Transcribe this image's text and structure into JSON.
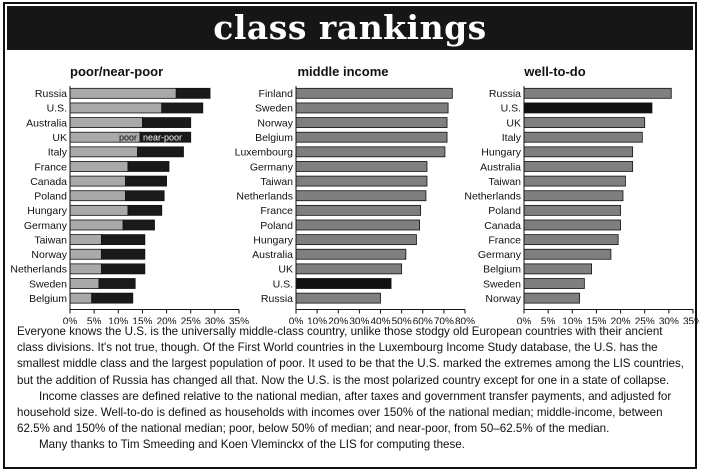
{
  "title": "class rankings",
  "colors": {
    "bar_light": "#a9a9a9",
    "bar_dark": "#1a1a1a",
    "bar_mid": "#7f7f7f",
    "highlight": "#111111"
  },
  "chart_data": [
    {
      "type": "bar",
      "orientation": "horizontal",
      "stacked": true,
      "title": "poor/near-poor",
      "categories": [
        "Russia",
        "U.S.",
        "Australia",
        "UK",
        "Italy",
        "France",
        "Canada",
        "Poland",
        "Hungary",
        "Germany",
        "Taiwan",
        "Norway",
        "Netherlands",
        "Sweden",
        "Belgium"
      ],
      "series": [
        {
          "name": "poor",
          "values": [
            22,
            19,
            15,
            14.5,
            14,
            12,
            11.5,
            11.5,
            12,
            11,
            6.5,
            6.5,
            6.5,
            6,
            4.5
          ]
        },
        {
          "name": "near-poor",
          "values": [
            7,
            8.5,
            10,
            10.5,
            9.5,
            8.5,
            8.5,
            8,
            7,
            6.5,
            9,
            9,
            9,
            7.5,
            8.5
          ]
        }
      ],
      "xlim": [
        0,
        35
      ],
      "xticks": [
        "0%",
        "5%",
        "10%",
        "15%",
        "20%",
        "25%",
        "30%",
        "35%"
      ],
      "legend_placement": "inside bar (UK)"
    },
    {
      "type": "bar",
      "orientation": "horizontal",
      "title": "middle income",
      "categories": [
        "Finland",
        "Sweden",
        "Norway",
        "Belgium",
        "Luxembourg",
        "Germany",
        "Taiwan",
        "Netherlands",
        "France",
        "Poland",
        "Hungary",
        "Australia",
        "UK",
        "U.S.",
        "Russia"
      ],
      "values": [
        74,
        72,
        71.5,
        71.5,
        70.5,
        62,
        62,
        61.5,
        59,
        58.5,
        57,
        52,
        50,
        45,
        40
      ],
      "highlight": "U.S.",
      "xlim": [
        0,
        80
      ],
      "xticks": [
        "0%",
        "10%",
        "20%",
        "30%",
        "40%",
        "50%",
        "60%",
        "70%",
        "80%"
      ]
    },
    {
      "type": "bar",
      "orientation": "horizontal",
      "title": "well-to-do",
      "categories": [
        "Russia",
        "U.S.",
        "UK",
        "Italy",
        "Hungary",
        "Australia",
        "Taiwan",
        "Netherlands",
        "Poland",
        "Canada",
        "France",
        "Germany",
        "Belgium",
        "Sweden",
        "Norway"
      ],
      "values": [
        30.5,
        26.5,
        25,
        24.5,
        22.5,
        22.5,
        21,
        20.5,
        20,
        20,
        19.5,
        18,
        14,
        12.5,
        11.5
      ],
      "highlight": "U.S.",
      "xlim": [
        0,
        35
      ],
      "xticks": [
        "0%",
        "5%",
        "10%",
        "15%",
        "20%",
        "25%",
        "30%",
        "35%"
      ]
    }
  ],
  "caption": {
    "p1": "Everyone knows the U.S. is the universally middle-class country, unlike those stodgy old European countries with their ancient class divisions. It's not true, though. Of the First World countries in the Luxembourg Income Study database, the U.S. has the smallest middle class and the largest population of poor. It used to be that the U.S. marked the extremes among the LIS countries, but the addition of Russia has changed all that. Now the U.S. is the most polarized country except for one in a state of collapse.",
    "p2": "Income classes are defined relative to the national median, after taxes and government transfer payments, and adjusted for household size. Well-to-do is defined as households with incomes over 150% of the national median; middle-income, between 62.5% and 150% of the national median; poor, below 50% of median; and near-poor, from 50–62.5% of the median.",
    "p3": "Many thanks to Tim Smeeding and Koen Vleminckx of the LIS for computing these."
  }
}
